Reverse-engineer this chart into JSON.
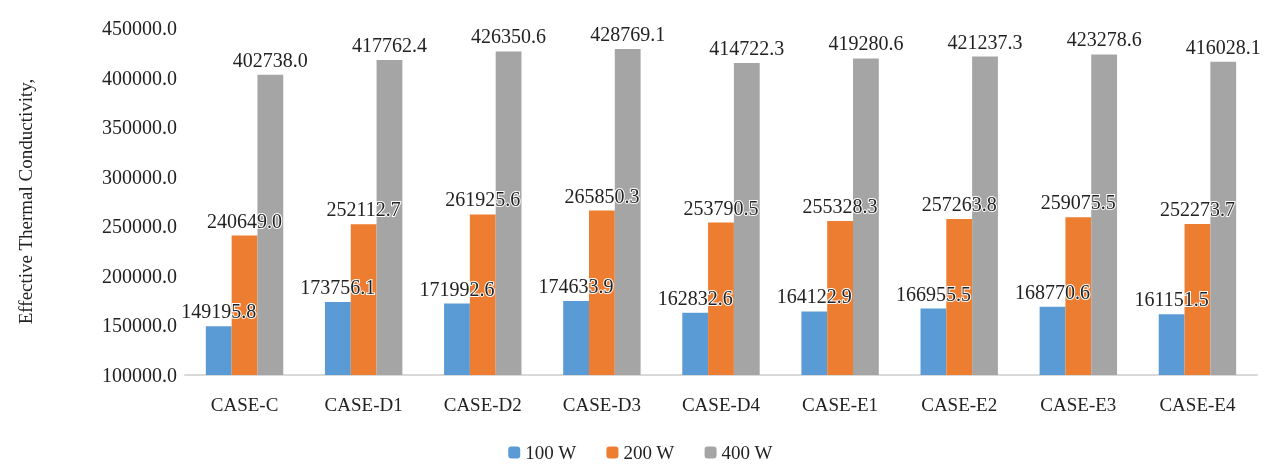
{
  "chart_data": {
    "type": "bar",
    "ylabel": "Effective Thermal Conductivity,",
    "categories": [
      "CASE-C",
      "CASE-D1",
      "CASE-D2",
      "CASE-D3",
      "CASE-D4",
      "CASE-E1",
      "CASE-E2",
      "CASE-E3",
      "CASE-E4"
    ],
    "series": [
      {
        "name": "100 W",
        "color": "#5b9bd5",
        "values": [
          149195.8,
          173756.1,
          171992.6,
          174633.9,
          162832.6,
          164122.9,
          166955.5,
          168770.6,
          161151.5
        ],
        "value_labels": [
          "149195.8",
          "173756.1",
          "171992.6",
          "174633.9",
          "162832.6",
          "164122.9",
          "166955.5",
          "168770.6",
          "161151.5"
        ]
      },
      {
        "name": "200 W",
        "color": "#ed7d31",
        "values": [
          240649,
          252112.7,
          261925.6,
          265850.3,
          253790.5,
          255328.3,
          257263.8,
          259075.5,
          252273.7
        ],
        "value_labels": [
          "240649.0",
          "252112.7",
          "261925.6",
          "265850.3",
          "253790.5",
          "255328.3",
          "257263.8",
          "259075.5",
          "252273.7"
        ]
      },
      {
        "name": "400 W",
        "color": "#a5a5a5",
        "values": [
          402738,
          417762.4,
          426350.6,
          428769.1,
          414722.3,
          419280.6,
          421237.3,
          423278.6,
          416028.1
        ],
        "value_labels": [
          "402738.0",
          "417762.4",
          "426350.6",
          "428769.1",
          "414722.3",
          "419280.6",
          "421237.3",
          "423278.6",
          "416028.1"
        ]
      }
    ],
    "ylim": [
      100000,
      450000
    ],
    "yticks": [
      {
        "value": 100000,
        "label": "100000.0"
      },
      {
        "value": 150000,
        "label": "150000.0"
      },
      {
        "value": 200000,
        "label": "200000.0"
      },
      {
        "value": 250000,
        "label": "250000.0"
      },
      {
        "value": 300000,
        "label": "300000.0"
      },
      {
        "value": 350000,
        "label": "350000.0"
      },
      {
        "value": 400000,
        "label": "400000.0"
      },
      {
        "value": 450000,
        "label": "450000.0"
      }
    ],
    "grid": false,
    "legend": "bottom"
  }
}
